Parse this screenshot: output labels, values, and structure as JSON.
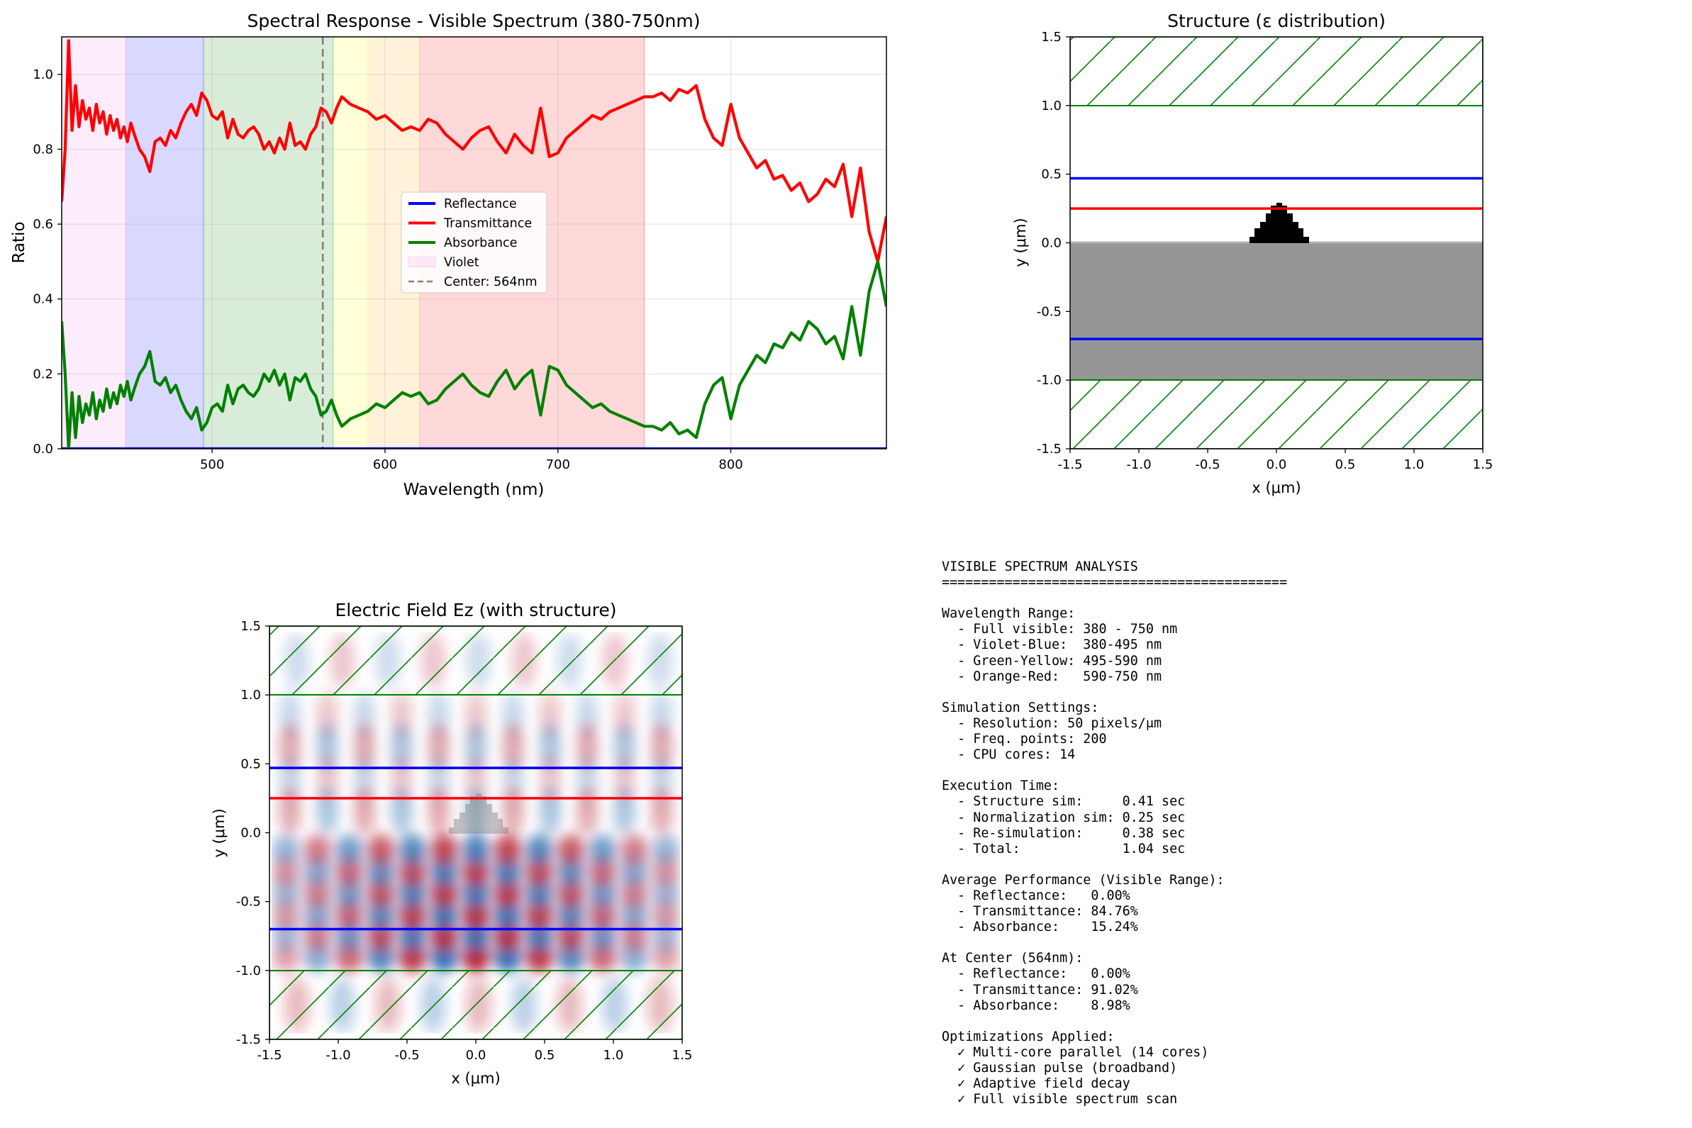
{
  "colors": {
    "reflectance": "#0000ff",
    "transmittance": "#ff0000",
    "absorbance": "#008000",
    "pml": "#008000",
    "substrate": "#969696",
    "scatterer": "#000000",
    "center_line": "#808080"
  },
  "chart_data": [
    {
      "id": "spectral-response",
      "type": "line",
      "title": "Spectral Response - Visible Spectrum (380-750nm)",
      "xlabel": "Wavelength (nm)",
      "ylabel": "Ratio",
      "xlim": [
        413,
        890
      ],
      "ylim": [
        0,
        1.1
      ],
      "xticks": [
        500,
        600,
        700,
        800
      ],
      "yticks": [
        0.0,
        0.2,
        0.4,
        0.6,
        0.8,
        1.0
      ],
      "xtick_labels": [
        "500",
        "600",
        "700",
        "800"
      ],
      "ytick_labels": [
        "0.0",
        "0.2",
        "0.4",
        "0.6",
        "0.8",
        "1.0"
      ],
      "grid": true,
      "legend": "center",
      "bands": [
        {
          "name": "Violet",
          "x0": 380,
          "x1": 450,
          "color": "#ee82ee",
          "alpha": 0.15
        },
        {
          "name": "Blue",
          "x0": 450,
          "x1": 495,
          "color": "#0000ff",
          "alpha": 0.15
        },
        {
          "name": "Green",
          "x0": 495,
          "x1": 570,
          "color": "#008000",
          "alpha": 0.15
        },
        {
          "name": "Yellow",
          "x0": 570,
          "x1": 590,
          "color": "#ffff00",
          "alpha": 0.15
        },
        {
          "name": "Orange",
          "x0": 590,
          "x1": 620,
          "color": "#ffa500",
          "alpha": 0.15
        },
        {
          "name": "Red",
          "x0": 620,
          "x1": 750,
          "color": "#ff0000",
          "alpha": 0.15
        }
      ],
      "center_line": {
        "x": 564
      },
      "legend_entries": [
        {
          "label": "Reflectance",
          "kind": "line",
          "color": "#0000ff"
        },
        {
          "label": "Transmittance",
          "kind": "line",
          "color": "#ff0000"
        },
        {
          "label": "Absorbance",
          "kind": "line",
          "color": "#008000"
        },
        {
          "label": "Violet",
          "kind": "patch",
          "color": "#ee82ee"
        },
        {
          "label": "Center: 564nm",
          "kind": "dashed",
          "color": "#808080"
        }
      ],
      "x": [
        413,
        415,
        417,
        419,
        421,
        423,
        425,
        427,
        429,
        431,
        433,
        435,
        437,
        439,
        441,
        443,
        445,
        447,
        449,
        451,
        453,
        455,
        458,
        461,
        464,
        467,
        470,
        473,
        476,
        479,
        482,
        485,
        488,
        491,
        494,
        497,
        500,
        503,
        506,
        509,
        512,
        515,
        518,
        521,
        524,
        527,
        530,
        533,
        536,
        539,
        542,
        545,
        548,
        551,
        554,
        557,
        560,
        563,
        566,
        569,
        572,
        575,
        580,
        585,
        590,
        595,
        600,
        605,
        610,
        615,
        620,
        625,
        630,
        635,
        640,
        645,
        650,
        655,
        660,
        665,
        670,
        675,
        680,
        685,
        690,
        695,
        700,
        705,
        710,
        715,
        720,
        725,
        730,
        735,
        740,
        745,
        750,
        755,
        760,
        765,
        770,
        775,
        780,
        785,
        790,
        795,
        800,
        805,
        810,
        815,
        820,
        825,
        830,
        835,
        840,
        845,
        850,
        855,
        860,
        865,
        870,
        875,
        880,
        885,
        890
      ],
      "series": [
        {
          "name": "Reflectance",
          "color": "#0000ff",
          "values": [
            0,
            0,
            0,
            0,
            0,
            0,
            0,
            0,
            0,
            0,
            0,
            0,
            0,
            0,
            0,
            0,
            0,
            0,
            0,
            0,
            0,
            0,
            0,
            0,
            0,
            0,
            0,
            0,
            0,
            0,
            0,
            0,
            0,
            0,
            0,
            0,
            0,
            0,
            0,
            0,
            0,
            0,
            0,
            0,
            0,
            0,
            0,
            0,
            0,
            0,
            0,
            0,
            0,
            0,
            0,
            0,
            0,
            0,
            0,
            0,
            0,
            0,
            0,
            0,
            0,
            0,
            0,
            0,
            0,
            0,
            0,
            0,
            0,
            0,
            0,
            0,
            0,
            0,
            0,
            0,
            0,
            0,
            0,
            0,
            0,
            0,
            0,
            0,
            0,
            0,
            0,
            0,
            0,
            0,
            0,
            0,
            0,
            0,
            0,
            0,
            0,
            0,
            0,
            0,
            0,
            0,
            0,
            0,
            0,
            0,
            0,
            0,
            0,
            0,
            0,
            0,
            0,
            0,
            0,
            0,
            0,
            0,
            0,
            0,
            0
          ]
        },
        {
          "name": "Transmittance",
          "color": "#ff0000",
          "values": [
            0.66,
            0.8,
            1.09,
            0.85,
            0.97,
            0.86,
            0.93,
            0.88,
            0.91,
            0.85,
            0.92,
            0.87,
            0.9,
            0.84,
            0.89,
            0.85,
            0.88,
            0.83,
            0.86,
            0.82,
            0.87,
            0.84,
            0.8,
            0.78,
            0.74,
            0.82,
            0.83,
            0.81,
            0.85,
            0.83,
            0.87,
            0.9,
            0.92,
            0.89,
            0.95,
            0.93,
            0.89,
            0.88,
            0.9,
            0.83,
            0.88,
            0.84,
            0.83,
            0.85,
            0.86,
            0.84,
            0.8,
            0.82,
            0.79,
            0.83,
            0.8,
            0.87,
            0.81,
            0.82,
            0.8,
            0.84,
            0.86,
            0.91,
            0.9,
            0.87,
            0.91,
            0.94,
            0.92,
            0.91,
            0.9,
            0.88,
            0.89,
            0.87,
            0.85,
            0.86,
            0.85,
            0.88,
            0.87,
            0.84,
            0.82,
            0.8,
            0.83,
            0.85,
            0.86,
            0.82,
            0.79,
            0.84,
            0.81,
            0.79,
            0.91,
            0.78,
            0.79,
            0.83,
            0.85,
            0.87,
            0.89,
            0.88,
            0.9,
            0.91,
            0.92,
            0.93,
            0.94,
            0.94,
            0.95,
            0.93,
            0.96,
            0.95,
            0.97,
            0.88,
            0.83,
            0.81,
            0.92,
            0.83,
            0.79,
            0.75,
            0.77,
            0.72,
            0.73,
            0.69,
            0.71,
            0.66,
            0.68,
            0.72,
            0.7,
            0.76,
            0.62,
            0.75,
            0.58,
            0.5,
            0.62
          ]
        },
        {
          "name": "Absorbance",
          "color": "#008000",
          "values": [
            0.34,
            0.2,
            0.0,
            0.15,
            0.03,
            0.14,
            0.07,
            0.12,
            0.09,
            0.15,
            0.08,
            0.13,
            0.1,
            0.16,
            0.11,
            0.15,
            0.12,
            0.17,
            0.14,
            0.18,
            0.13,
            0.16,
            0.2,
            0.22,
            0.26,
            0.18,
            0.17,
            0.19,
            0.15,
            0.17,
            0.13,
            0.1,
            0.08,
            0.11,
            0.05,
            0.07,
            0.11,
            0.12,
            0.1,
            0.17,
            0.12,
            0.16,
            0.17,
            0.15,
            0.14,
            0.16,
            0.2,
            0.18,
            0.21,
            0.17,
            0.2,
            0.13,
            0.19,
            0.18,
            0.2,
            0.16,
            0.14,
            0.09,
            0.1,
            0.13,
            0.09,
            0.06,
            0.08,
            0.09,
            0.1,
            0.12,
            0.11,
            0.13,
            0.15,
            0.14,
            0.15,
            0.12,
            0.13,
            0.16,
            0.18,
            0.2,
            0.17,
            0.15,
            0.14,
            0.18,
            0.21,
            0.16,
            0.19,
            0.21,
            0.09,
            0.22,
            0.21,
            0.17,
            0.15,
            0.13,
            0.11,
            0.12,
            0.1,
            0.09,
            0.08,
            0.07,
            0.06,
            0.06,
            0.05,
            0.07,
            0.04,
            0.05,
            0.03,
            0.12,
            0.17,
            0.19,
            0.08,
            0.17,
            0.21,
            0.25,
            0.23,
            0.28,
            0.27,
            0.31,
            0.29,
            0.34,
            0.32,
            0.28,
            0.3,
            0.24,
            0.38,
            0.25,
            0.42,
            0.5,
            0.38
          ]
        }
      ]
    },
    {
      "id": "structure",
      "type": "heatmap",
      "title": "Structure (ε distribution)",
      "xlabel": "x (μm)",
      "ylabel": "y (μm)",
      "xlim": [
        -1.5,
        1.5
      ],
      "ylim": [
        -1.5,
        1.5
      ],
      "xtick_labels": [
        "-1.5",
        "-1.0",
        "-0.5",
        "0.0",
        "0.5",
        "1.0",
        "1.5"
      ],
      "ytick_labels": [
        "-1.5",
        "-1.0",
        "-0.5",
        "0.0",
        "0.5",
        "1.0",
        "1.5"
      ],
      "pml_top": [
        1.0,
        1.5
      ],
      "pml_bottom": [
        -1.5,
        -1.0
      ],
      "substrate": [
        -1.0,
        0.0
      ],
      "monitor_lines": [
        {
          "y": 0.47,
          "color": "#0000ff"
        },
        {
          "y": 0.25,
          "color": "#ff0000"
        },
        {
          "y": -0.7,
          "color": "#0000ff"
        }
      ]
    },
    {
      "id": "field",
      "type": "heatmap",
      "title": "Electric Field Ez (with structure)",
      "xlabel": "x (μm)",
      "ylabel": "y (μm)",
      "xlim": [
        -1.5,
        1.5
      ],
      "ylim": [
        -1.5,
        1.5
      ],
      "xtick_labels": [
        "-1.5",
        "-1.0",
        "-0.5",
        "0.0",
        "0.5",
        "1.0",
        "1.5"
      ],
      "ytick_labels": [
        "-1.5",
        "-1.0",
        "-0.5",
        "0.0",
        "0.5",
        "1.0",
        "1.5"
      ],
      "colormap": "RdBu_r",
      "monitor_lines": [
        {
          "y": 0.47,
          "color": "#0000ff"
        },
        {
          "y": 0.25,
          "color": "#ff0000"
        },
        {
          "y": -0.7,
          "color": "#0000ff"
        }
      ]
    }
  ],
  "summary_text": "VISIBLE SPECTRUM ANALYSIS\n============================================\n\nWavelength Range:\n  - Full visible: 380 - 750 nm\n  - Violet-Blue:  380-495 nm\n  - Green-Yellow: 495-590 nm\n  - Orange-Red:   590-750 nm\n\nSimulation Settings:\n  - Resolution: 50 pixels/μm\n  - Freq. points: 200\n  - CPU cores: 14\n\nExecution Time:\n  - Structure sim:     0.41 sec\n  - Normalization sim: 0.25 sec\n  - Re-simulation:     0.38 sec\n  - Total:             1.04 sec\n\nAverage Performance (Visible Range):\n  - Reflectance:   0.00%\n  - Transmittance: 84.76%\n  - Absorbance:    15.24%\n\nAt Center (564nm):\n  - Reflectance:   0.00%\n  - Transmittance: 91.02%\n  - Absorbance:    8.98%\n\nOptimizations Applied:\n  ✓ Multi-core parallel (14 cores)\n  ✓ Gaussian pulse (broadband)\n  ✓ Adaptive field decay\n  ✓ Full visible spectrum scan"
}
